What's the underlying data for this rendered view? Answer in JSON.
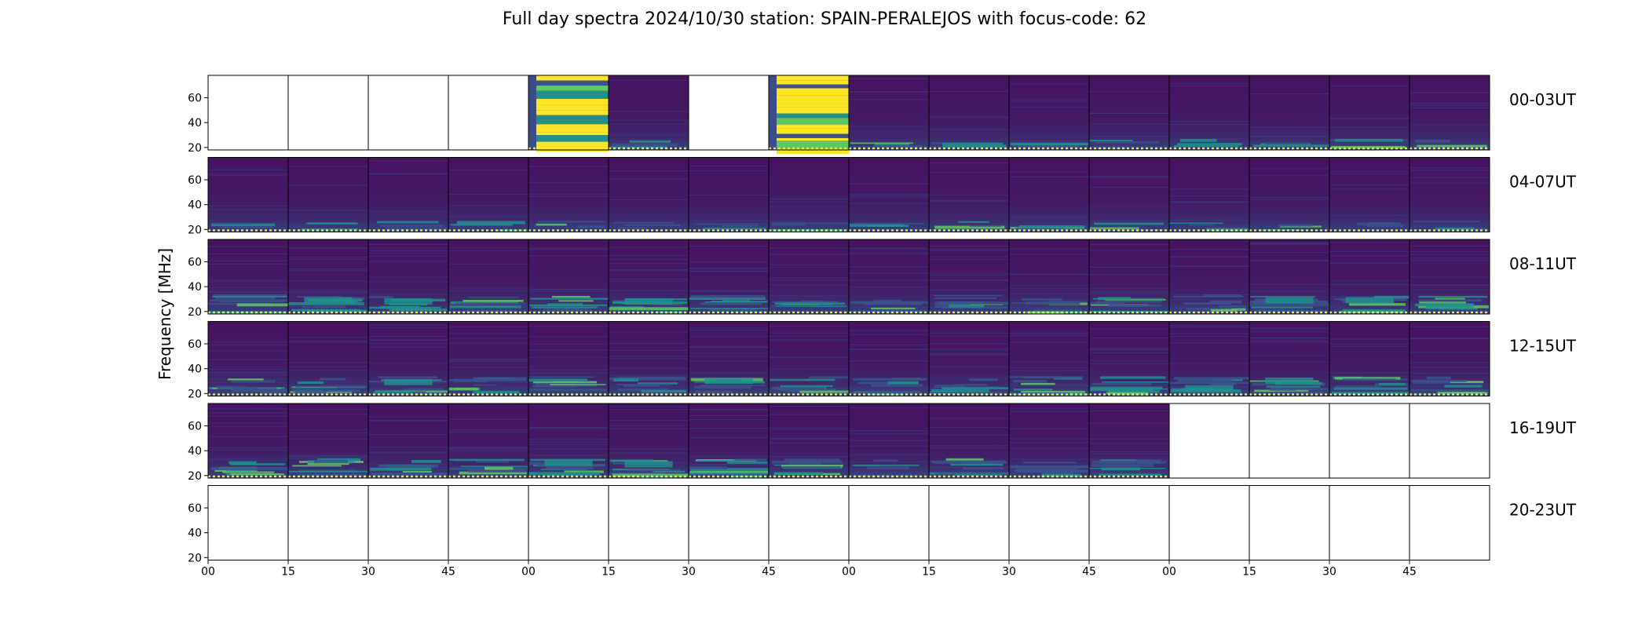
{
  "chart_data": {
    "type": "heatmap",
    "title": "Full day spectra 2024/10/30 station: SPAIN-PERALEJOS with focus-code: 62",
    "ylabel": "Frequency [MHz]",
    "xlabel": "",
    "ylim": [
      18,
      78
    ],
    "yticks": [
      20,
      40,
      60
    ],
    "xtick_labels": [
      "00",
      "15",
      "30",
      "45",
      "00",
      "15",
      "30",
      "45",
      "00",
      "15",
      "30",
      "45",
      "00",
      "15",
      "30",
      "45"
    ],
    "row_labels": [
      "00-03UT",
      "04-07UT",
      "08-11UT",
      "12-15UT",
      "16-19UT",
      "20-23UT"
    ],
    "colormap": [
      "#440154",
      "#3b528b",
      "#21918c",
      "#5ec962",
      "#fde725"
    ],
    "panel_states": [
      [
        "empty",
        "empty",
        "empty",
        "empty",
        "saturated",
        "low",
        "empty",
        "saturated",
        "low",
        "low",
        "low",
        "low",
        "low",
        "low",
        "low",
        "low"
      ],
      [
        "low",
        "low",
        "low",
        "low",
        "low",
        "low",
        "low",
        "low",
        "low",
        "low",
        "low",
        "low",
        "low",
        "low",
        "low",
        "low"
      ],
      [
        "busy",
        "busy",
        "busy",
        "busy",
        "busy",
        "busy",
        "busy",
        "busy",
        "busy",
        "busy",
        "busy",
        "busy",
        "busy",
        "busy",
        "busy",
        "busy"
      ],
      [
        "busy",
        "busy",
        "busy",
        "busy",
        "busy",
        "busy",
        "busy",
        "busy",
        "busy",
        "busy",
        "busy",
        "busy",
        "busy",
        "busy",
        "busy",
        "busy"
      ],
      [
        "busy",
        "busy",
        "busy",
        "busy",
        "busy",
        "busy",
        "busy",
        "busy",
        "busy",
        "busy",
        "busy",
        "busy",
        "empty",
        "empty",
        "empty",
        "empty"
      ],
      [
        "empty",
        "empty",
        "empty",
        "empty",
        "empty",
        "empty",
        "empty",
        "empty",
        "empty",
        "empty",
        "empty",
        "empty",
        "empty",
        "empty",
        "empty",
        "empty"
      ]
    ]
  }
}
